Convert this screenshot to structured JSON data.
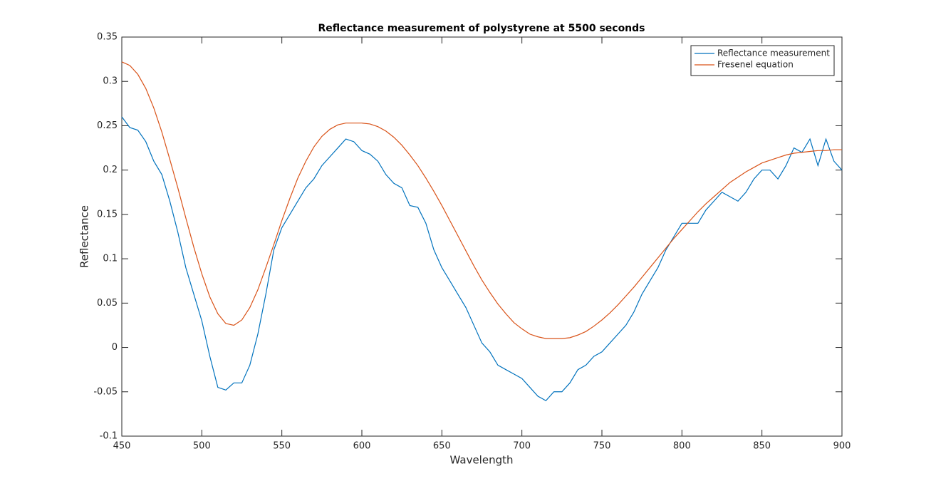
{
  "chart_data": {
    "type": "line",
    "title": "Reflectance measurement of polystyrene at 5500 seconds",
    "x_label": "Wavelength",
    "y_label": "Reflectance",
    "x": [
      450,
      455,
      460,
      465,
      470,
      475,
      480,
      485,
      490,
      495,
      500,
      505,
      510,
      515,
      520,
      525,
      530,
      535,
      540,
      545,
      550,
      555,
      560,
      565,
      570,
      575,
      580,
      585,
      590,
      595,
      600,
      605,
      610,
      615,
      620,
      625,
      630,
      635,
      640,
      645,
      650,
      655,
      660,
      665,
      670,
      675,
      680,
      685,
      690,
      695,
      700,
      705,
      710,
      715,
      720,
      725,
      730,
      735,
      740,
      745,
      750,
      755,
      760,
      765,
      770,
      775,
      780,
      785,
      790,
      795,
      800,
      805,
      810,
      815,
      820,
      825,
      830,
      835,
      840,
      845,
      850,
      855,
      860,
      865,
      870,
      875,
      880,
      885,
      890,
      895,
      900
    ],
    "series": [
      {
        "name": "Reflectance measurement",
        "color": "#0072bd",
        "values": [
          0.26,
          0.248,
          0.245,
          0.232,
          0.21,
          0.195,
          0.165,
          0.13,
          0.09,
          0.06,
          0.03,
          -0.01,
          -0.045,
          -0.048,
          -0.04,
          -0.04,
          -0.02,
          0.015,
          0.06,
          0.11,
          0.135,
          0.15,
          0.165,
          0.18,
          0.19,
          0.205,
          0.215,
          0.225,
          0.235,
          0.232,
          0.222,
          0.218,
          0.21,
          0.195,
          0.185,
          0.18,
          0.16,
          0.158,
          0.14,
          0.11,
          0.09,
          0.075,
          0.06,
          0.045,
          0.025,
          0.005,
          -0.005,
          -0.02,
          -0.025,
          -0.03,
          -0.035,
          -0.045,
          -0.055,
          -0.06,
          -0.05,
          -0.05,
          -0.04,
          -0.025,
          -0.02,
          -0.01,
          -0.005,
          0.005,
          0.015,
          0.025,
          0.04,
          0.06,
          0.075,
          0.09,
          0.11,
          0.125,
          0.14,
          0.14,
          0.14,
          0.155,
          0.165,
          0.175,
          0.17,
          0.165,
          0.175,
          0.19,
          0.2,
          0.2,
          0.19,
          0.205,
          0.225,
          0.22,
          0.235,
          0.205,
          0.235,
          0.21,
          0.2
        ]
      },
      {
        "name": "Fresenel equation",
        "color": "#d95319",
        "values": [
          0.322,
          0.318,
          0.308,
          0.292,
          0.27,
          0.243,
          0.212,
          0.18,
          0.146,
          0.113,
          0.083,
          0.057,
          0.038,
          0.027,
          0.025,
          0.031,
          0.045,
          0.065,
          0.09,
          0.116,
          0.143,
          0.168,
          0.191,
          0.21,
          0.226,
          0.238,
          0.246,
          0.251,
          0.253,
          0.253,
          0.253,
          0.252,
          0.249,
          0.244,
          0.237,
          0.228,
          0.217,
          0.205,
          0.191,
          0.176,
          0.16,
          0.143,
          0.126,
          0.109,
          0.092,
          0.076,
          0.062,
          0.049,
          0.038,
          0.028,
          0.021,
          0.015,
          0.012,
          0.01,
          0.01,
          0.01,
          0.011,
          0.014,
          0.018,
          0.024,
          0.031,
          0.039,
          0.048,
          0.058,
          0.068,
          0.079,
          0.09,
          0.101,
          0.112,
          0.123,
          0.133,
          0.143,
          0.153,
          0.162,
          0.17,
          0.178,
          0.186,
          0.192,
          0.198,
          0.203,
          0.208,
          0.211,
          0.214,
          0.217,
          0.219,
          0.22,
          0.221,
          0.222,
          0.222,
          0.223,
          0.223
        ]
      }
    ],
    "xlim": [
      450,
      900
    ],
    "ylim": [
      -0.1,
      0.35
    ],
    "xticks": [
      450,
      500,
      550,
      600,
      650,
      700,
      750,
      800,
      850,
      900
    ],
    "yticks": [
      -0.1,
      -0.05,
      0,
      0.05,
      0.1,
      0.15,
      0.2,
      0.25,
      0.3,
      0.35
    ],
    "grid": false,
    "legend": "northeast"
  }
}
